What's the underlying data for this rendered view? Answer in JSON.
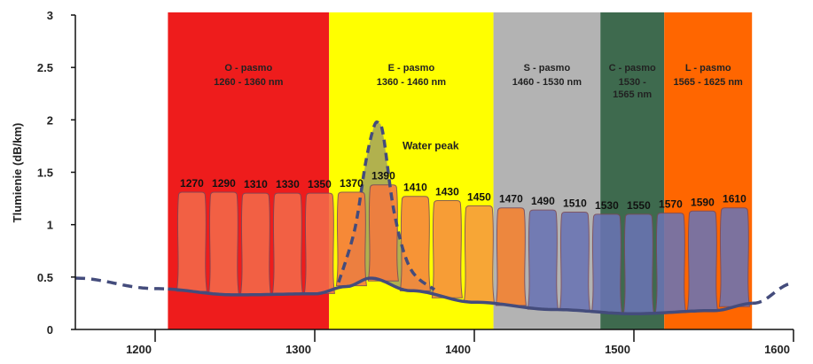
{
  "chart_data": {
    "type": "area",
    "title": "",
    "xlabel": "",
    "ylabel": "Tlumienie (dB/km)",
    "xlim": [
      1150,
      1600
    ],
    "ylim": [
      0,
      3
    ],
    "x_ticks": [
      "1200",
      "1300",
      "1400",
      "1500",
      "1600"
    ],
    "y_ticks": [
      "0",
      "0.5",
      "1",
      "1.5",
      "2",
      "2.5",
      "3"
    ],
    "bands": [
      {
        "name": "O - pasmo",
        "range": "1260 - 1360 nm",
        "start": 1208,
        "end": 1309,
        "color": "#ee1c1c"
      },
      {
        "name": "E - pasmo",
        "range": "1360 - 1460 nm",
        "start": 1309,
        "end": 1412,
        "color": "#ffff00"
      },
      {
        "name": "S - pasmo",
        "range": "1460 - 1530 nm",
        "start": 1412,
        "end": 1479,
        "color": "#b3b3b3"
      },
      {
        "name": "C - pasmo",
        "range": "1530 -\n1565 nm",
        "start": 1479,
        "end": 1519,
        "color": "#3e6a4e"
      },
      {
        "name": "L - pasmo",
        "range": "1565 - 1625 nm",
        "start": 1519,
        "end": 1574,
        "color": "#ff6600"
      }
    ],
    "channels": [
      {
        "label": "1270",
        "center": 1223,
        "peak": 1.31,
        "color": "#f36a4a"
      },
      {
        "label": "1290",
        "center": 1243,
        "peak": 1.31,
        "color": "#f36a4a"
      },
      {
        "label": "1310",
        "center": 1263,
        "peak": 1.3,
        "color": "#f36a4a"
      },
      {
        "label": "1330",
        "center": 1283,
        "peak": 1.3,
        "color": "#f36a4a"
      },
      {
        "label": "1350",
        "center": 1303,
        "peak": 1.3,
        "color": "#f36a4a"
      },
      {
        "label": "1370",
        "center": 1323,
        "peak": 1.31,
        "color": "#f5793f"
      },
      {
        "label": "1390",
        "center": 1343,
        "peak": 1.38,
        "color": "#f5793f"
      },
      {
        "label": "1410",
        "center": 1363,
        "peak": 1.27,
        "color": "#f6863e"
      },
      {
        "label": "1430",
        "center": 1383,
        "peak": 1.23,
        "color": "#f6903e"
      },
      {
        "label": "1450",
        "center": 1403,
        "peak": 1.18,
        "color": "#f79a3e"
      },
      {
        "label": "1470",
        "center": 1423,
        "peak": 1.16,
        "color": "#f5822f"
      },
      {
        "label": "1490",
        "center": 1443,
        "peak": 1.14,
        "color": "#6a74b4"
      },
      {
        "label": "1510",
        "center": 1463,
        "peak": 1.12,
        "color": "#6a74b4"
      },
      {
        "label": "1530",
        "center": 1483,
        "peak": 1.1,
        "color": "#6a74b4"
      },
      {
        "label": "1550",
        "center": 1503,
        "peak": 1.1,
        "color": "#6a74b4"
      },
      {
        "label": "1570",
        "center": 1523,
        "peak": 1.11,
        "color": "#6a74b4"
      },
      {
        "label": "1590",
        "center": 1543,
        "peak": 1.13,
        "color": "#6a74b4"
      },
      {
        "label": "1610",
        "center": 1563,
        "peak": 1.16,
        "color": "#6a74b4"
      }
    ],
    "series": [
      {
        "x": [
          1150,
          1200,
          1250,
          1300,
          1320,
          1335,
          1360,
          1400,
          1450,
          1500,
          1550,
          1575,
          1600
        ],
        "y": [
          0.49,
          0.39,
          0.33,
          0.34,
          0.41,
          0.49,
          0.37,
          0.26,
          0.19,
          0.15,
          0.18,
          0.25,
          0.44
        ]
      },
      {
        "x": [
          1315,
          1325,
          1332,
          1337,
          1340,
          1343,
          1350,
          1360,
          1375
        ],
        "y": [
          0.45,
          0.95,
          1.6,
          1.93,
          1.97,
          1.85,
          1.1,
          0.58,
          0.38
        ]
      }
    ],
    "annotations": [
      {
        "text": "Water peak",
        "x": 1355,
        "y": 1.72
      }
    ],
    "grid": false,
    "colors": {
      "line": "#444c7c",
      "water_peak_fill": "#a8a856",
      "axis": "#111111"
    }
  }
}
